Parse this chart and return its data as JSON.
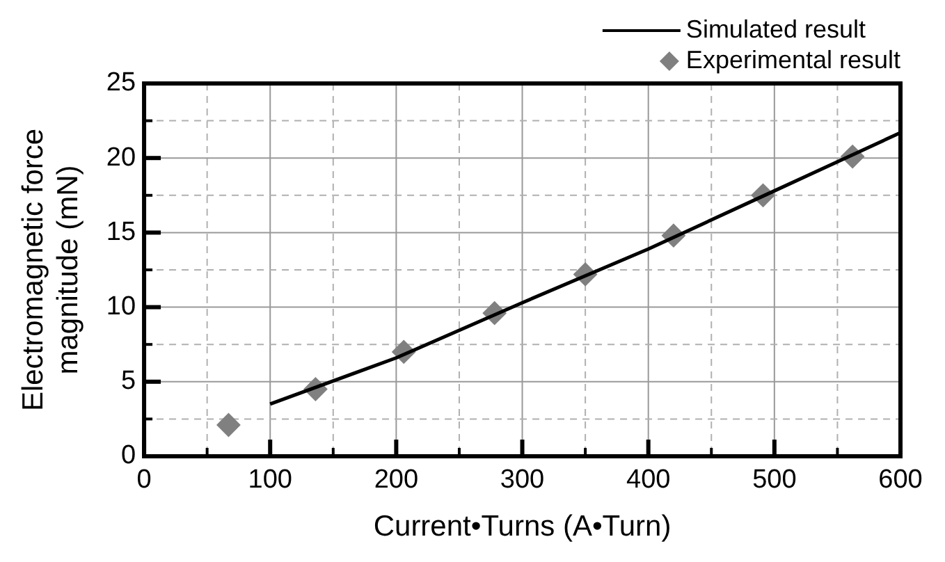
{
  "chart_data": {
    "type": "scatter",
    "xlabel": "Current•Turns (A•Turn)",
    "ylabel": "Electromagnetic force magnitude (mN)",
    "xlim": [
      0,
      600
    ],
    "xticks": [
      0,
      {
        "value": 50,
        "label": null
      },
      100,
      {
        "value": 150,
        "label": null
      },
      200,
      {
        "value": 250,
        "label": null
      },
      300,
      {
        "value": 350,
        "label": null
      },
      400,
      {
        "value": 450,
        "label": null
      },
      500,
      {
        "value": 550,
        "label": null
      },
      600
    ],
    "ylim": [
      0,
      25
    ],
    "yticks": [
      0,
      {
        "value": 2.5,
        "label": null
      },
      5,
      {
        "value": 7.5,
        "label": null
      },
      10,
      {
        "value": 12.5,
        "label": null
      },
      15,
      {
        "value": 17.5,
        "label": null
      },
      20,
      {
        "value": 22.5,
        "label": null
      },
      25
    ],
    "grid": true,
    "legend": "top right",
    "series": [
      {
        "name": "Simulated result",
        "type": "line",
        "color": "#000000",
        "marker": "none",
        "line_style": "solid",
        "x": [
          100,
          200,
          300,
          400,
          500,
          600
        ],
        "values": [
          3.5,
          6.6,
          10.3,
          13.9,
          17.8,
          21.7
        ]
      },
      {
        "name": "Experimental result",
        "type": "scatter",
        "color": "#808080",
        "marker": "diamond",
        "x": [
          67,
          136,
          206,
          278,
          350,
          420,
          491,
          562
        ],
        "values": [
          2.1,
          4.5,
          7.0,
          9.6,
          12.2,
          14.8,
          17.5,
          20.1
        ]
      }
    ]
  }
}
